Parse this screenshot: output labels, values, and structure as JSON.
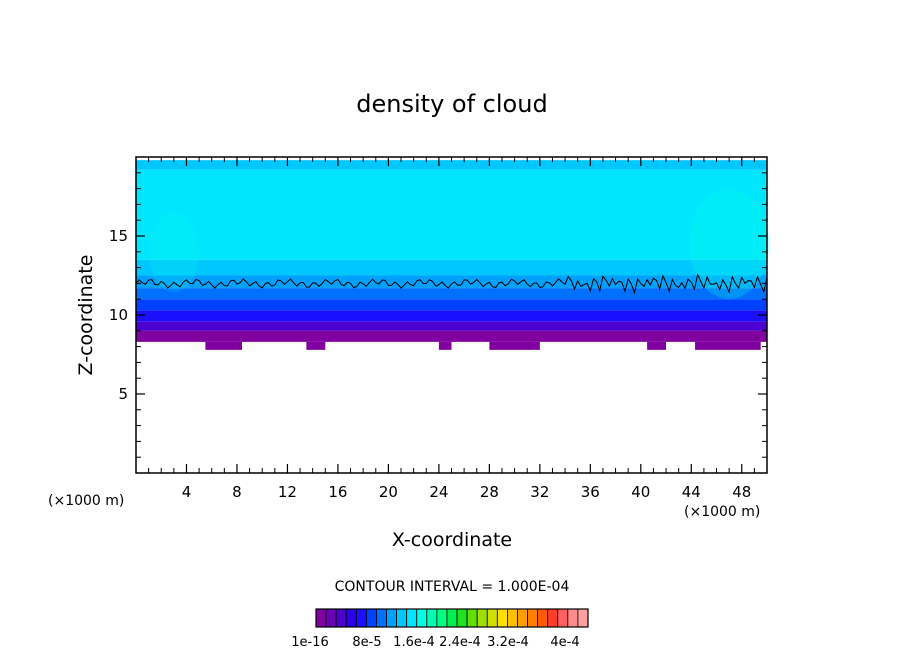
{
  "chart_data": {
    "type": "heatmap",
    "title": "density of cloud",
    "xlabel": "X-coordinate",
    "ylabel": "Z-coordinate",
    "x_unit": "(×1000 m)",
    "y_unit": "(×1000 m)",
    "xlim": [
      0,
      50
    ],
    "ylim": [
      0,
      20
    ],
    "x_ticks": [
      4,
      8,
      12,
      16,
      20,
      24,
      28,
      32,
      36,
      40,
      44,
      48
    ],
    "y_ticks": [
      5,
      10,
      15
    ],
    "contour_interval_label": "CONTOUR INTERVAL = 1.000E-04",
    "cloud_layer": {
      "base_z": 8.3,
      "top_z": 19.8,
      "contour_line_z": 12.0
    },
    "colorbar": {
      "tick_labels": [
        "1e-16",
        "8e-5",
        "1.6e-4",
        "2.4e-4",
        "3.2e-4",
        "4e-4"
      ],
      "colors": [
        "#8000a0",
        "#6a00b4",
        "#4c00d0",
        "#2a00e6",
        "#1a10ff",
        "#0040ff",
        "#0070ff",
        "#00a0ff",
        "#00c8ff",
        "#00e6ff",
        "#00ffe0",
        "#00ffb0",
        "#00ff80",
        "#00f050",
        "#20e020",
        "#60e000",
        "#a0e000",
        "#d0e000",
        "#ffe000",
        "#ffc000",
        "#ffa000",
        "#ff8000",
        "#ff5a00",
        "#ff3c28",
        "#ff6060",
        "#ff8c8c",
        "#ffa0a0"
      ]
    }
  }
}
